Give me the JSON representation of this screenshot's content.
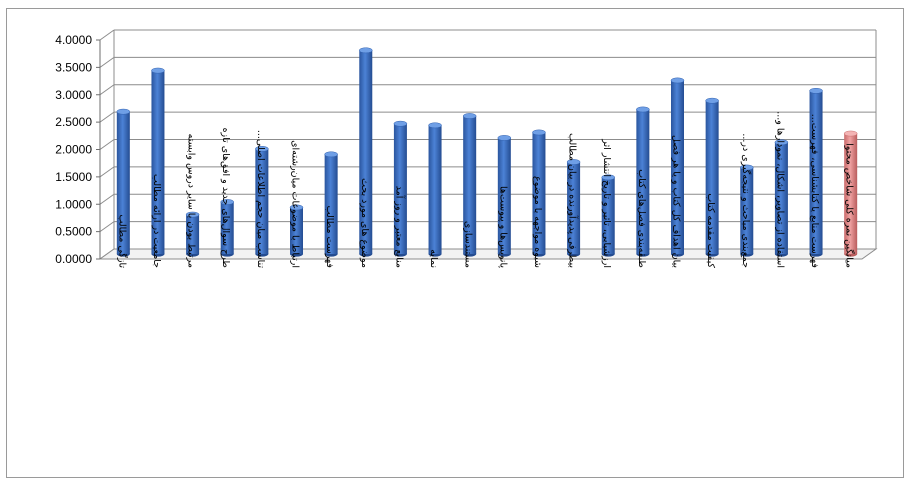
{
  "chart_data": {
    "type": "bar",
    "ylim": [
      0,
      4
    ],
    "y_ticks": [
      "0.0000",
      "0.5000",
      "1.0000",
      "1.5000",
      "2.0000",
      "2.5000",
      "3.0000",
      "3.5000",
      "4.0000"
    ],
    "grid": true,
    "legend": "none",
    "categories": [
      "تازگی مطالب",
      "جامعیت در ارائه مطالب",
      "مرتبط بودن با سایر دروس وابسته",
      "طرح سوال‌های جدید و افق‌های تازه",
      "تناسب میان حجم اطلاعات اصلی...",
      "ارتباط با موضوعات میان‌رشته‌ای",
      "فهرست مطالب",
      "موضوع های مورد بحث",
      "منابع معتبر و روز آمد",
      "نمایه",
      "مستندسازی",
      "پانویس‌ها و پیوست‌ها",
      "شیوه مواجهه با موضوع",
      "بیطرفی پدیدآورنده در بیان مطالب",
      "ارزشیابی، تاثیر و تاریخ انتشار اثر",
      "طبقه‌بندی فصل‌های کتاب",
      "بیان اهداف کل کتاب و یا هر فصل",
      "کیفیت مقدمه کتاب",
      "جمع‌بندی مباحث و نتیجه‌گیری در...",
      "استفاده از تصاویر، اشکال، نمودارها و...",
      "فهرست منابع یا کتابشناسی، فهرست...",
      "میانگین نمره کلی شاخص محتوا"
    ],
    "values": [
      2.6,
      3.35,
      0.72,
      0.95,
      1.92,
      0.85,
      1.82,
      3.72,
      2.38,
      2.35,
      2.52,
      2.12,
      2.22,
      1.68,
      1.4,
      2.64,
      3.17,
      2.8,
      1.58,
      2.04,
      2.98,
      2.2
    ],
    "bar_colors": [
      "#3a6fc4",
      "#3a6fc4",
      "#3a6fc4",
      "#3a6fc4",
      "#3a6fc4",
      "#3a6fc4",
      "#3a6fc4",
      "#3a6fc4",
      "#3a6fc4",
      "#3a6fc4",
      "#3a6fc4",
      "#3a6fc4",
      "#3a6fc4",
      "#3a6fc4",
      "#3a6fc4",
      "#3a6fc4",
      "#3a6fc4",
      "#3a6fc4",
      "#3a6fc4",
      "#3a6fc4",
      "#3a6fc4",
      "#e58a8a"
    ]
  }
}
